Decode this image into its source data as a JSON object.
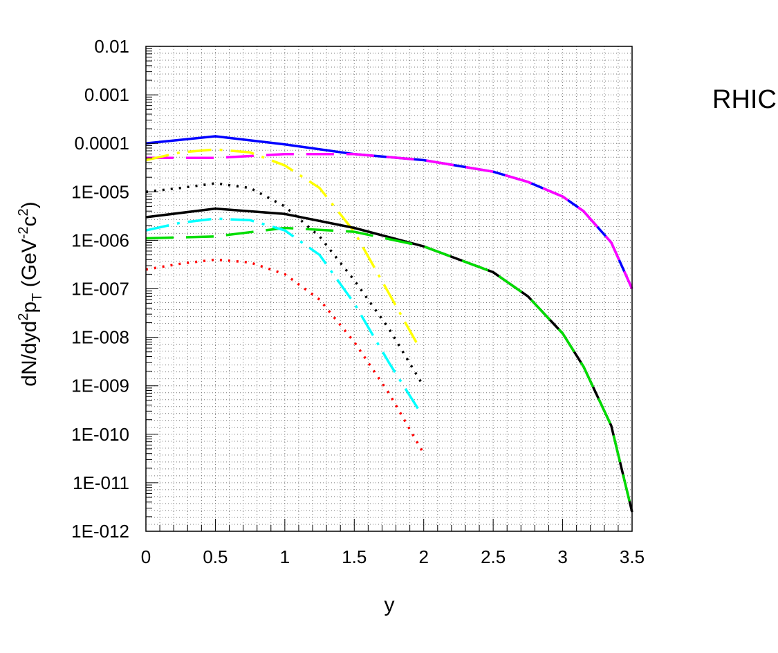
{
  "chart_data": {
    "type": "line",
    "annotation": "RHIC",
    "xlabel": "y",
    "ylabel": "dN/dyd²p_T (GeV⁻²c²)",
    "ylabel_parts": {
      "main": "dN/dyd",
      "sup1": "2",
      "p": "p",
      "sub": "T",
      "unit_open": " (GeV",
      "sup2": "-2",
      "c": "c",
      "sup3": "2",
      "unit_close": ")"
    },
    "xlim": [
      0,
      3.5
    ],
    "ylim": [
      1e-12,
      0.01
    ],
    "yscale": "log",
    "grid": true,
    "x_ticks": [
      "0",
      "0.5",
      "1",
      "1.5",
      "2",
      "2.5",
      "3",
      "3.5"
    ],
    "x_tick_values": [
      0,
      0.5,
      1,
      1.5,
      2,
      2.5,
      3,
      3.5
    ],
    "y_ticks": [
      "0.01",
      "0.001",
      "0.0001",
      "1E-005",
      "1E-006",
      "1E-007",
      "1E-008",
      "1E-009",
      "1E-010",
      "1E-011",
      "1E-012"
    ],
    "y_tick_values": [
      0.01,
      0.001,
      0.0001,
      1e-05,
      1e-06,
      1e-07,
      1e-08,
      1e-09,
      1e-10,
      1e-11,
      1e-12
    ],
    "series": [
      {
        "color": "#0000ff",
        "dash": "solid",
        "x": [
          0,
          0.5,
          1,
          1.5,
          2,
          2.5,
          2.75,
          3,
          3.15,
          3.35,
          3.5
        ],
        "y": [
          0.0001,
          0.00014,
          9.5e-05,
          6e-05,
          4.5e-05,
          2.6e-05,
          1.6e-05,
          8e-06,
          4e-06,
          9e-07,
          1e-07
        ]
      },
      {
        "color": "#ff00ff",
        "dash": "longdash",
        "x": [
          0,
          0.5,
          1,
          1.5,
          2,
          2.5,
          2.75,
          3,
          3.15,
          3.35,
          3.5
        ],
        "y": [
          5e-05,
          5e-05,
          6e-05,
          6e-05,
          4.5e-05,
          2.6e-05,
          1.6e-05,
          8e-06,
          4e-06,
          9e-07,
          1e-07
        ]
      },
      {
        "color": "#ffff00",
        "dash": "dashdot",
        "x": [
          0,
          0.25,
          0.5,
          0.75,
          1,
          1.25,
          1.5,
          1.75,
          1.97
        ],
        "y": [
          4.5e-05,
          6.5e-05,
          7.5e-05,
          6.5e-05,
          3.5e-05,
          1.2e-05,
          1.5e-06,
          8e-08,
          6e-09
        ]
      },
      {
        "color": "#000000",
        "dash": "dotted",
        "x": [
          0,
          0.25,
          0.5,
          0.75,
          1,
          1.25,
          1.5,
          1.75,
          1.98
        ],
        "y": [
          1e-05,
          1.2e-05,
          1.5e-05,
          1.2e-05,
          5e-06,
          1.2e-06,
          1.5e-07,
          1.5e-08,
          1.2e-09
        ]
      },
      {
        "color": "#000000",
        "dash": "solid",
        "x": [
          0,
          0.5,
          1,
          1.5,
          2,
          2.5,
          2.75,
          3,
          3.15,
          3.35,
          3.5
        ],
        "y": [
          3e-06,
          4.5e-06,
          3.5e-06,
          1.8e-06,
          7.5e-07,
          2.2e-07,
          7e-08,
          1.2e-08,
          2.5e-09,
          1.5e-10,
          2.5e-12
        ]
      },
      {
        "color": "#00dd00",
        "dash": "longdash",
        "x": [
          0,
          0.5,
          1,
          1.5,
          2,
          2.5,
          2.75,
          3,
          3.15,
          3.35,
          3.5
        ],
        "y": [
          1.1e-06,
          1.2e-06,
          1.8e-06,
          1.5e-06,
          7.5e-07,
          2.2e-07,
          7e-08,
          1.2e-08,
          2.5e-09,
          1.5e-10,
          2.5e-12
        ]
      },
      {
        "color": "#00ffff",
        "dash": "dashdot",
        "x": [
          0,
          0.25,
          0.5,
          0.75,
          1,
          1.25,
          1.5,
          1.75,
          1.97
        ],
        "y": [
          1.6e-06,
          2.3e-06,
          2.8e-06,
          2.6e-06,
          1.6e-06,
          5e-07,
          5e-08,
          3e-09,
          3e-10
        ]
      },
      {
        "color": "#ff0000",
        "dash": "dotted",
        "x": [
          0,
          0.25,
          0.5,
          0.75,
          1,
          1.25,
          1.5,
          1.75,
          2
        ],
        "y": [
          2.5e-07,
          3.3e-07,
          4e-07,
          3.5e-07,
          2e-07,
          6e-08,
          8e-09,
          7e-10,
          4e-11
        ]
      }
    ]
  }
}
